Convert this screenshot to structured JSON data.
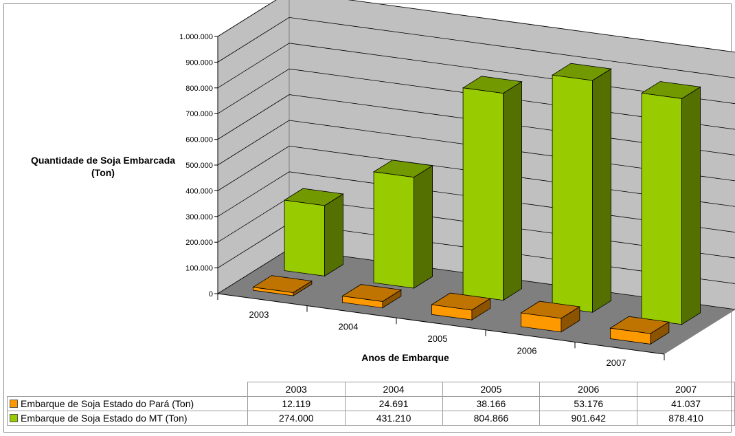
{
  "chart_data": {
    "type": "bar",
    "subtype": "3d-column",
    "categories": [
      "2003",
      "2004",
      "2005",
      "2006",
      "2007"
    ],
    "series": [
      {
        "name": "Embarque de Soja Estado do Pará (Ton)",
        "values": [
          12119,
          24691,
          38166,
          53176,
          41037
        ],
        "labels": [
          "12.119",
          "24.691",
          "38.166",
          "53.176",
          "41.037"
        ],
        "color": "#ff9900"
      },
      {
        "name": "Embarque de Soja Estado do MT (Ton)",
        "values": [
          274000,
          431210,
          804866,
          901642,
          878410
        ],
        "labels": [
          "274.000",
          "431.210",
          "804.866",
          "901.642",
          "878.410"
        ],
        "color": "#99cc00"
      }
    ],
    "ylabel": "Quantidade de Soja Embarcada (Ton)",
    "xlabel": "Anos de Embarque",
    "ylim": [
      0,
      1000000
    ],
    "yticks": [
      "0",
      "100.000",
      "200.000",
      "300.000",
      "400.000",
      "500.000",
      "600.000",
      "700.000",
      "800.000",
      "900.000",
      "1.000.000"
    ],
    "grid": true,
    "legend": "data-table-below"
  }
}
